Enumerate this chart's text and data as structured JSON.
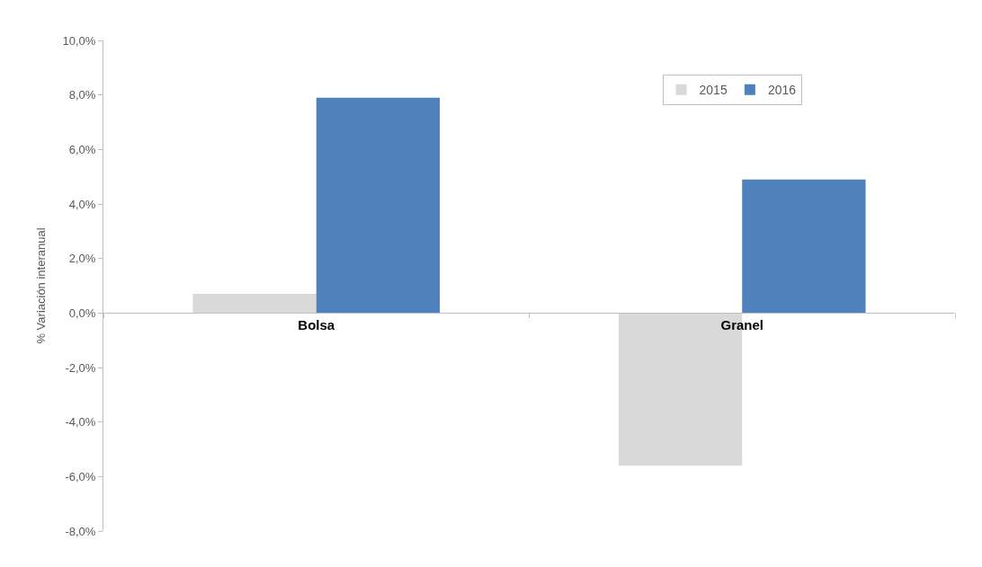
{
  "chart_data": {
    "type": "bar",
    "ylabel": "% Variación interanual",
    "categories": [
      "Bolsa",
      "Granel"
    ],
    "series": [
      {
        "name": "2015",
        "color": "#d9d9d9",
        "values": [
          0.7,
          -5.6
        ]
      },
      {
        "name": "2016",
        "color": "#4f81bd",
        "values": [
          7.9,
          4.9
        ]
      }
    ],
    "ylim": [
      -8,
      10
    ],
    "yticks": [
      {
        "value": -8,
        "label": "-8,0%"
      },
      {
        "value": -6,
        "label": "-6,0%"
      },
      {
        "value": -4,
        "label": "-4,0%"
      },
      {
        "value": -2,
        "label": "-2,0%"
      },
      {
        "value": 0,
        "label": "0,0%"
      },
      {
        "value": 2,
        "label": "2,0%"
      },
      {
        "value": 4,
        "label": "4,0%"
      },
      {
        "value": 6,
        "label": "6,0%"
      },
      {
        "value": 8,
        "label": "8,0%"
      },
      {
        "value": 10,
        "label": "10,0%"
      }
    ],
    "legend": "top right"
  }
}
